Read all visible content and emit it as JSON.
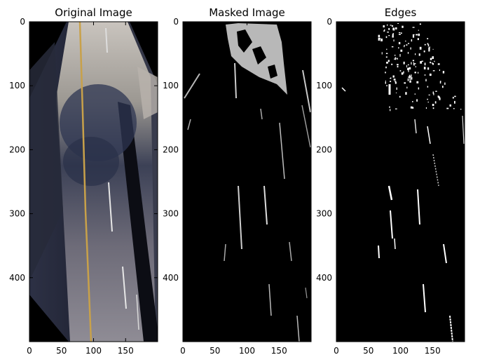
{
  "chart_data": [
    {
      "type": "image",
      "title": "Original Image",
      "content": "perspective-warped road photo (bird's-eye view)",
      "xlim": [
        0,
        200
      ],
      "ylim": [
        500,
        0
      ],
      "xticks": [
        0,
        50,
        100,
        150
      ],
      "yticks": [
        0,
        100,
        200,
        300,
        400
      ],
      "grid": false
    },
    {
      "type": "image",
      "title": "Masked Image",
      "content": "binary color-threshold mask of lane pixels",
      "xlim": [
        0,
        200
      ],
      "ylim": [
        500,
        0
      ],
      "xticks": [
        0,
        50,
        100,
        150
      ],
      "yticks": [
        0,
        100,
        200,
        300,
        400
      ],
      "grid": false
    },
    {
      "type": "image",
      "title": "Edges",
      "content": "binary edge-detection output",
      "xlim": [
        0,
        200
      ],
      "ylim": [
        500,
        0
      ],
      "xticks": [
        0,
        50,
        100,
        150
      ],
      "yticks": [
        0,
        100,
        200,
        300,
        400
      ],
      "grid": false
    }
  ],
  "colors": {
    "background": "#ffffff",
    "image_black": "#000000",
    "road_gray": "#8c8a8f",
    "road_light": "#c8c3bd",
    "lane_yellow": "#c8a14a",
    "lane_white": "#e6e6e6"
  }
}
